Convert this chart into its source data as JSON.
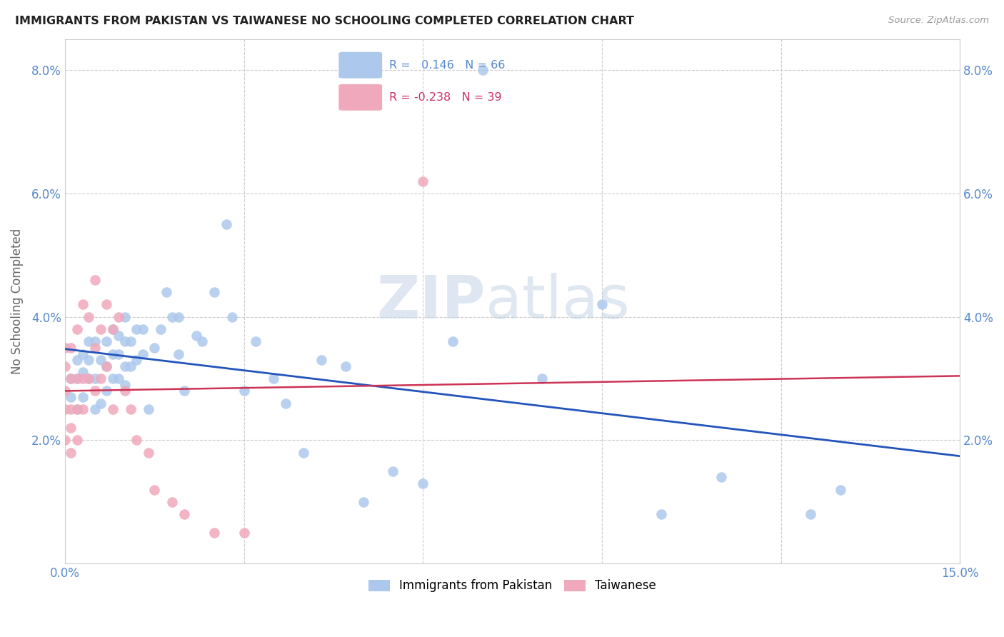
{
  "title": "IMMIGRANTS FROM PAKISTAN VS TAIWANESE NO SCHOOLING COMPLETED CORRELATION CHART",
  "source": "Source: ZipAtlas.com",
  "ylabel": "No Schooling Completed",
  "xlim": [
    0.0,
    0.15
  ],
  "ylim": [
    0.0,
    0.085
  ],
  "pakistan_R": "0.146",
  "pakistan_N": "66",
  "taiwanese_R": "-0.238",
  "taiwanese_N": "39",
  "pakistan_color": "#adc8ed",
  "taiwanese_color": "#f0a8bc",
  "pakistan_line_color": "#2255bb",
  "taiwanese_line_color": "#cc3355",
  "watermark_zip": "ZIP",
  "watermark_atlas": "atlas",
  "tick_color": "#5588cc",
  "grid_color": "#cccccc",
  "pakistan_x": [
    0.001,
    0.001,
    0.002,
    0.002,
    0.002,
    0.003,
    0.003,
    0.003,
    0.004,
    0.004,
    0.004,
    0.005,
    0.005,
    0.005,
    0.006,
    0.006,
    0.007,
    0.007,
    0.007,
    0.008,
    0.008,
    0.008,
    0.009,
    0.009,
    0.009,
    0.01,
    0.01,
    0.01,
    0.01,
    0.011,
    0.011,
    0.012,
    0.012,
    0.013,
    0.013,
    0.014,
    0.015,
    0.016,
    0.017,
    0.018,
    0.019,
    0.019,
    0.02,
    0.022,
    0.023,
    0.025,
    0.027,
    0.028,
    0.03,
    0.032,
    0.035,
    0.037,
    0.04,
    0.043,
    0.047,
    0.05,
    0.055,
    0.06,
    0.065,
    0.07,
    0.08,
    0.09,
    0.1,
    0.11,
    0.125,
    0.13
  ],
  "pakistan_y": [
    0.027,
    0.03,
    0.025,
    0.03,
    0.033,
    0.027,
    0.031,
    0.034,
    0.03,
    0.033,
    0.036,
    0.025,
    0.03,
    0.036,
    0.026,
    0.033,
    0.028,
    0.032,
    0.036,
    0.03,
    0.034,
    0.038,
    0.03,
    0.034,
    0.037,
    0.029,
    0.032,
    0.036,
    0.04,
    0.032,
    0.036,
    0.033,
    0.038,
    0.034,
    0.038,
    0.025,
    0.035,
    0.038,
    0.044,
    0.04,
    0.034,
    0.04,
    0.028,
    0.037,
    0.036,
    0.044,
    0.055,
    0.04,
    0.028,
    0.036,
    0.03,
    0.026,
    0.018,
    0.033,
    0.032,
    0.01,
    0.015,
    0.013,
    0.036,
    0.08,
    0.03,
    0.042,
    0.008,
    0.014,
    0.008,
    0.012
  ],
  "taiwanese_x": [
    0.0,
    0.0,
    0.0,
    0.0,
    0.0,
    0.001,
    0.001,
    0.001,
    0.001,
    0.001,
    0.002,
    0.002,
    0.002,
    0.002,
    0.003,
    0.003,
    0.003,
    0.004,
    0.004,
    0.005,
    0.005,
    0.005,
    0.006,
    0.006,
    0.007,
    0.007,
    0.008,
    0.008,
    0.009,
    0.01,
    0.011,
    0.012,
    0.014,
    0.015,
    0.018,
    0.02,
    0.025,
    0.03,
    0.06
  ],
  "taiwanese_y": [
    0.02,
    0.025,
    0.028,
    0.032,
    0.035,
    0.018,
    0.022,
    0.025,
    0.03,
    0.035,
    0.02,
    0.025,
    0.03,
    0.038,
    0.025,
    0.03,
    0.042,
    0.03,
    0.04,
    0.028,
    0.035,
    0.046,
    0.03,
    0.038,
    0.032,
    0.042,
    0.025,
    0.038,
    0.04,
    0.028,
    0.025,
    0.02,
    0.018,
    0.012,
    0.01,
    0.008,
    0.005,
    0.005,
    0.062
  ]
}
